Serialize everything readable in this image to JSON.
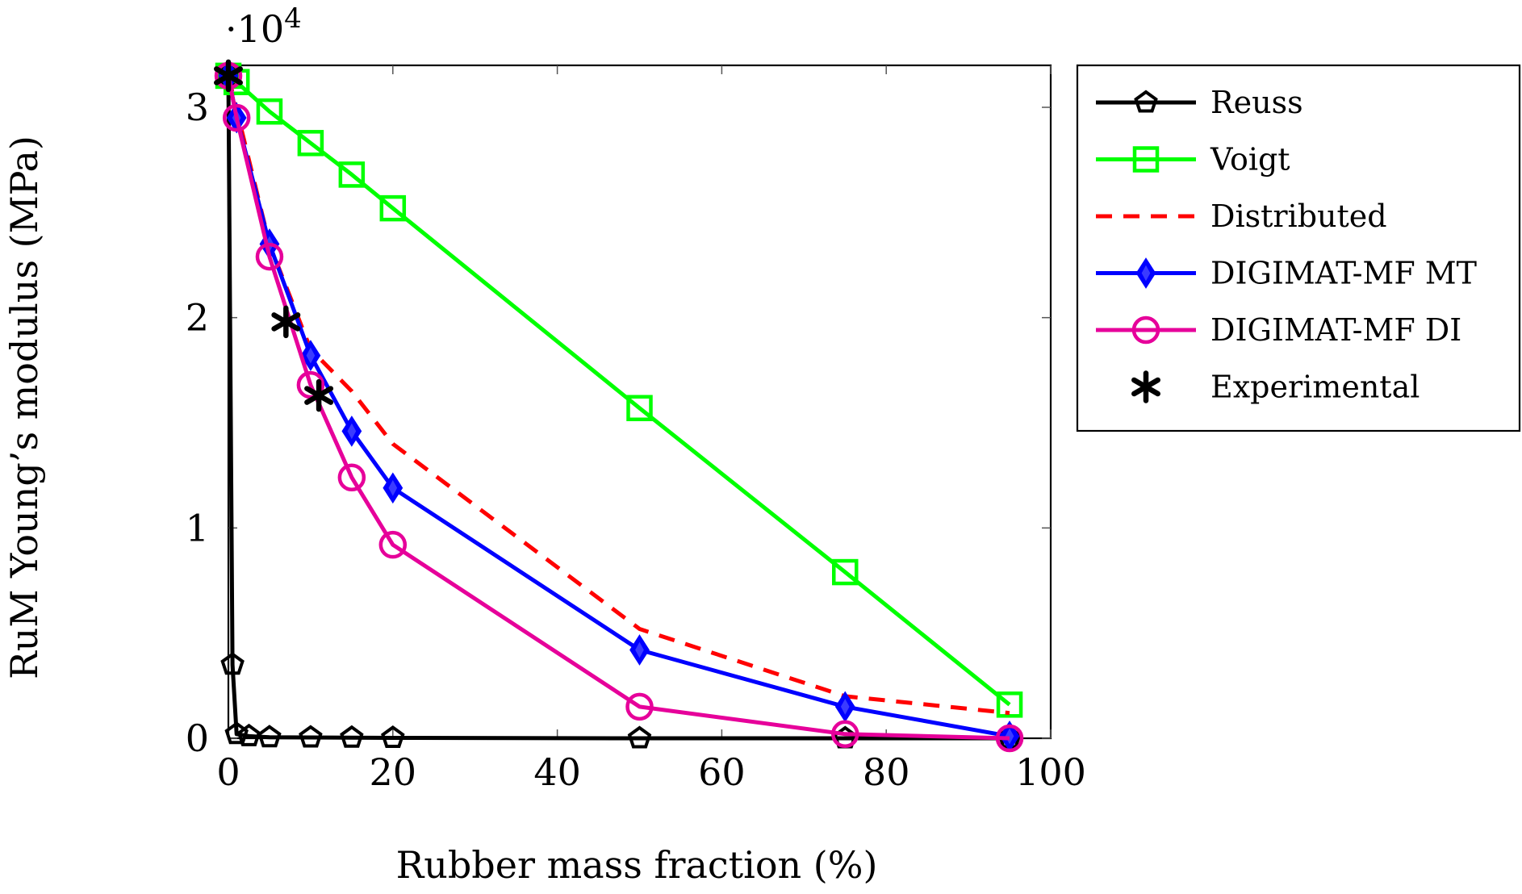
{
  "chart_data": {
    "type": "line",
    "title": "",
    "xlabel": "Rubber mass fraction (%)",
    "ylabel": "RuM Young’s modulus (MPa)",
    "y_scale_label": "·10",
    "y_scale_exponent": "4",
    "xlim": [
      0,
      100
    ],
    "ylim": [
      0,
      3.2
    ],
    "xticks": [
      0,
      20,
      40,
      60,
      80,
      100
    ],
    "yticks": [
      0,
      1,
      2,
      3
    ],
    "xtick_labels": [
      "0",
      "20",
      "40",
      "60",
      "80",
      "100"
    ],
    "ytick_labels": [
      "0",
      "1",
      "2",
      "3"
    ],
    "grid": false,
    "legend_position": "outside-right",
    "series": [
      {
        "name": "Reuss",
        "color": "#000000",
        "line": "solid",
        "marker": "pentagon",
        "x": [
          0,
          0.5,
          1,
          2.5,
          5,
          10,
          15,
          20,
          50,
          75,
          95
        ],
        "y": [
          3.15,
          0.35,
          0.02,
          0.01,
          0.005,
          0.004,
          0.003,
          0.002,
          0.0,
          0.0,
          0.0
        ]
      },
      {
        "name": "Voigt",
        "color": "#00ff00",
        "line": "solid",
        "marker": "square",
        "x": [
          0,
          1,
          5,
          10,
          15,
          20,
          50,
          75,
          95
        ],
        "y": [
          3.15,
          3.12,
          2.98,
          2.83,
          2.68,
          2.52,
          1.57,
          0.79,
          0.16
        ]
      },
      {
        "name": "Distributed",
        "color": "#ff0000",
        "line": "dashed",
        "marker": "none",
        "x": [
          0,
          5,
          10,
          15,
          20,
          50,
          75,
          95
        ],
        "y": [
          3.15,
          2.35,
          1.85,
          1.65,
          1.4,
          0.52,
          0.2,
          0.12
        ]
      },
      {
        "name": "DIGIMAT-MF MT",
        "color": "#0000ff",
        "line": "solid",
        "marker": "diamond",
        "x": [
          0,
          1,
          5,
          10,
          15,
          20,
          50,
          75,
          95
        ],
        "y": [
          3.15,
          2.95,
          2.35,
          1.82,
          1.46,
          1.19,
          0.42,
          0.15,
          0.01
        ]
      },
      {
        "name": "DIGIMAT-MF DI",
        "color": "#e6009a",
        "line": "solid",
        "marker": "circle",
        "x": [
          0,
          1,
          5,
          10,
          15,
          20,
          50,
          75,
          95
        ],
        "y": [
          3.15,
          2.95,
          2.29,
          1.68,
          1.24,
          0.92,
          0.15,
          0.02,
          0.0
        ]
      },
      {
        "name": "Experimental",
        "color": "#000000",
        "line": "none",
        "marker": "asterisk",
        "x": [
          0,
          7,
          11
        ],
        "y": [
          3.15,
          1.98,
          1.63
        ]
      }
    ]
  }
}
